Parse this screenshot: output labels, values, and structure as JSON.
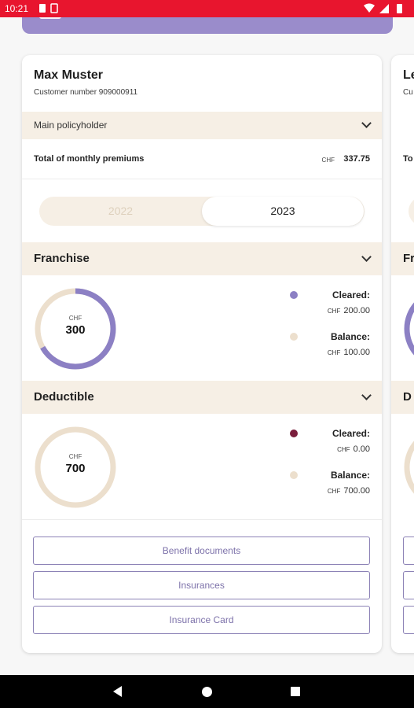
{
  "status_bar": {
    "time": "10:21"
  },
  "colors": {
    "status_red": "#e8152e",
    "brand_purple": "#9a8ccb",
    "beige_band": "#f6efe5",
    "button_text": "#7d72aa",
    "deductible_cleared_dot": "#7a1d3c"
  },
  "card": {
    "name": "Max Muster",
    "customer_number": "Customer number 909000911",
    "policyholder_role": "Main policyholder",
    "total_label": "Total of monthly premiums",
    "total_currency": "CHF",
    "total_amount": "337.75",
    "years": [
      "2022",
      "2023"
    ],
    "selected_year": "2023",
    "franchise": {
      "title": "Franchise",
      "currency": "CHF",
      "total": "300",
      "cleared_label": "Cleared:",
      "cleared_currency": "CHF",
      "cleared_value": "200.00",
      "balance_label": "Balance:",
      "balance_currency": "CHF",
      "balance_value": "100.00",
      "cleared_fraction": 0.667
    },
    "deductible": {
      "title": "Deductible",
      "currency": "CHF",
      "total": "700",
      "cleared_label": "Cleared:",
      "cleared_currency": "CHF",
      "cleared_value": "0.00",
      "balance_label": "Balance:",
      "balance_currency": "CHF",
      "balance_value": "700.00",
      "cleared_fraction": 0.0
    },
    "buttons": {
      "benefit_documents": "Benefit documents",
      "insurances": "Insurances",
      "insurance_card": "Insurance Card"
    }
  },
  "next_card": {
    "name_partial": "Le",
    "customer_partial": "Cu",
    "total_partial": "To",
    "franchise_partial": "Fr",
    "deductible_partial": "D"
  }
}
